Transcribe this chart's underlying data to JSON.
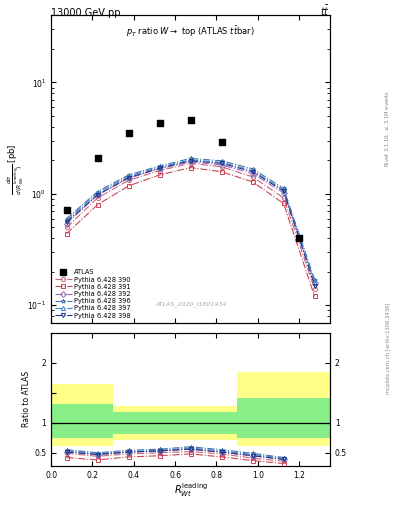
{
  "title_top": "13000 GeV pp",
  "title_right": "tt̅",
  "plot_title": "p_{T} ratio W \\rightarrow top (ATLAS t\\bar{t}bar)",
  "watermark": "ATLAS_2020_I1801434",
  "right_label": "mcplots.cern.ch [arXiv:1306.3436]",
  "rivet_label": "Rivet 3.1.10; \\geq 3.1M events",
  "xlabel": "R_{Wt}^{leading}",
  "ylabel_main": "d\\sigma/d(R) [pb]",
  "ylabel_ratio": "Ratio to ATLAS",
  "xbins": [
    0.0,
    0.15,
    0.3,
    0.45,
    0.6,
    0.75,
    0.9,
    1.05,
    1.2,
    1.35
  ],
  "xlim": [
    0.0,
    1.35
  ],
  "ylim_main": [
    0.07,
    40.0
  ],
  "ylim_ratio": [
    0.28,
    2.5
  ],
  "atlas_data": [
    0.72,
    2.1,
    3.5,
    4.3,
    4.6,
    2.9,
    0.4
  ],
  "atlas_x": [
    0.075,
    0.225,
    0.375,
    0.525,
    0.675,
    0.825,
    1.2
  ],
  "series": [
    {
      "label": "Pythia 6.428 390",
      "color": "#cc6677",
      "linestyle": "-.",
      "marker": "o",
      "values": [
        0.5,
        0.92,
        1.32,
        1.62,
        1.88,
        1.75,
        1.42,
        0.92,
        0.14
      ]
    },
    {
      "label": "Pythia 6.428 391",
      "color": "#cc4455",
      "linestyle": "-.",
      "marker": "s",
      "values": [
        0.44,
        0.8,
        1.18,
        1.48,
        1.72,
        1.58,
        1.28,
        0.82,
        0.12
      ]
    },
    {
      "label": "Pythia 6.428 392",
      "color": "#9966bb",
      "linestyle": "-.",
      "marker": "D",
      "values": [
        0.54,
        0.98,
        1.38,
        1.68,
        1.94,
        1.82,
        1.52,
        1.02,
        0.16
      ]
    },
    {
      "label": "Pythia 6.428 396",
      "color": "#4477aa",
      "linestyle": "-.",
      "marker": "*",
      "values": [
        0.6,
        1.05,
        1.48,
        1.78,
        2.08,
        1.98,
        1.68,
        1.12,
        0.17
      ]
    },
    {
      "label": "Pythia 6.428 397",
      "color": "#4488cc",
      "linestyle": "-.",
      "marker": "^",
      "values": [
        0.58,
        1.02,
        1.44,
        1.74,
        2.02,
        1.92,
        1.62,
        1.08,
        0.16
      ]
    },
    {
      "label": "Pythia 6.428 398",
      "color": "#223388",
      "linestyle": "-.",
      "marker": "v",
      "values": [
        0.56,
        0.98,
        1.4,
        1.7,
        1.98,
        1.88,
        1.58,
        1.06,
        0.15
      ]
    }
  ],
  "ratio_series": [
    {
      "label": "Pythia 6.428 390",
      "color": "#cc6677",
      "linestyle": "-.",
      "marker": "o",
      "values": [
        0.49,
        0.44,
        0.48,
        0.5,
        0.52,
        0.48,
        0.41,
        0.36
      ]
    },
    {
      "label": "Pythia 6.428 391",
      "color": "#cc4455",
      "linestyle": "-.",
      "marker": "s",
      "values": [
        0.42,
        0.38,
        0.43,
        0.45,
        0.48,
        0.43,
        0.37,
        0.32
      ]
    },
    {
      "label": "Pythia 6.428 392",
      "color": "#9966bb",
      "linestyle": "-.",
      "marker": "D",
      "values": [
        0.52,
        0.47,
        0.51,
        0.53,
        0.56,
        0.51,
        0.45,
        0.39
      ]
    },
    {
      "label": "Pythia 6.428 396",
      "color": "#4477aa",
      "linestyle": "-.",
      "marker": "*",
      "values": [
        0.55,
        0.5,
        0.54,
        0.56,
        0.6,
        0.55,
        0.49,
        0.42
      ]
    },
    {
      "label": "Pythia 6.428 397",
      "color": "#4488cc",
      "linestyle": "-.",
      "marker": "^",
      "values": [
        0.53,
        0.49,
        0.52,
        0.54,
        0.58,
        0.53,
        0.47,
        0.41
      ]
    },
    {
      "label": "Pythia 6.428 398",
      "color": "#223388",
      "linestyle": "-.",
      "marker": "v",
      "values": [
        0.51,
        0.47,
        0.51,
        0.53,
        0.56,
        0.51,
        0.45,
        0.39
      ]
    }
  ],
  "ratio_x": [
    0.075,
    0.225,
    0.375,
    0.525,
    0.675,
    0.825,
    0.975,
    1.125
  ],
  "band_yellow_edges": [
    0.0,
    0.3,
    0.6,
    0.9,
    1.35
  ],
  "band_yellow_low": [
    0.62,
    0.72,
    0.72,
    0.62,
    0.62
  ],
  "band_yellow_high": [
    1.65,
    1.28,
    1.28,
    1.85,
    1.85
  ],
  "band_green_edges": [
    0.0,
    0.3,
    0.6,
    0.9,
    1.35
  ],
  "band_green_low": [
    0.75,
    0.82,
    0.82,
    0.75,
    0.75
  ],
  "band_green_high": [
    1.32,
    1.18,
    1.18,
    1.42,
    1.42
  ],
  "yellow_color": "#ffff88",
  "green_color": "#88ee88",
  "background_color": "#ffffff"
}
